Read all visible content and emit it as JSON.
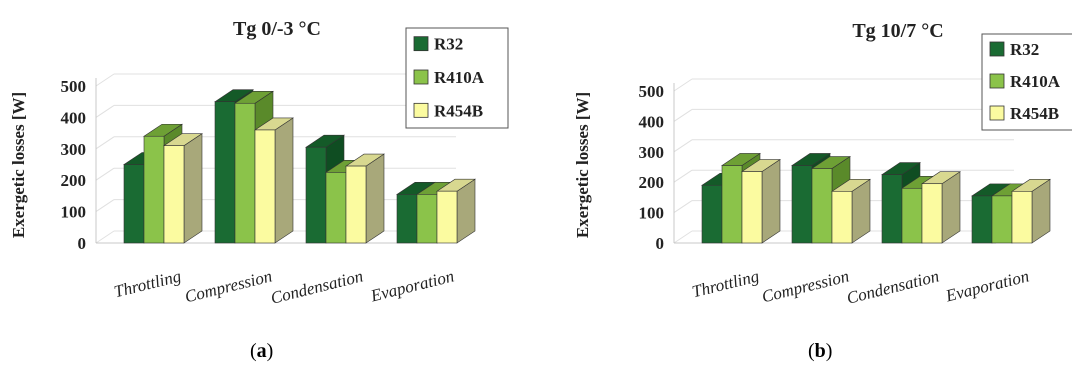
{
  "chart_data": [
    {
      "type": "bar",
      "panel": "(a)",
      "panel_letter": "a",
      "title": "Tg 0/-3 °C",
      "ylabel": "Exergetic losses [W]",
      "xlabel": "",
      "ylim": [
        0,
        500
      ],
      "yticks": [
        0,
        100,
        200,
        300,
        400,
        500
      ],
      "categories": [
        "Throttling",
        "Compression",
        "Condensation",
        "Evaporation"
      ],
      "series": [
        {
          "name": "R32",
          "values": [
            250,
            450,
            305,
            155
          ]
        },
        {
          "name": "R410A",
          "values": [
            340,
            445,
            225,
            155
          ]
        },
        {
          "name": "R454B",
          "values": [
            310,
            360,
            245,
            165
          ]
        }
      ],
      "grid": true,
      "legend_position": "top-right"
    },
    {
      "type": "bar",
      "panel": "(b)",
      "panel_letter": "b",
      "title": "Tg 10/7 °C",
      "ylabel": "Exergetic losses [W]",
      "xlabel": "",
      "ylim": [
        0,
        500
      ],
      "yticks": [
        0,
        100,
        200,
        300,
        400,
        500
      ],
      "categories": [
        "Throttling",
        "Compression",
        "Condensation",
        "Evaporation"
      ],
      "series": [
        {
          "name": "R32",
          "values": [
            190,
            255,
            225,
            155
          ]
        },
        {
          "name": "R410A",
          "values": [
            255,
            245,
            180,
            155
          ]
        },
        {
          "name": "R454B",
          "values": [
            235,
            170,
            195,
            170
          ]
        }
      ],
      "grid": true,
      "legend_position": "top-right"
    }
  ],
  "colors": {
    "series_front": [
      "#1a6b33",
      "#8bc34a",
      "#fbfba0"
    ],
    "series_top": [
      "#145a28",
      "#6ea035",
      "#d8d890"
    ],
    "series_side": [
      "#0f4d22",
      "#5a8a2a",
      "#a8a87a"
    ],
    "grid": "#e0e0e0"
  }
}
